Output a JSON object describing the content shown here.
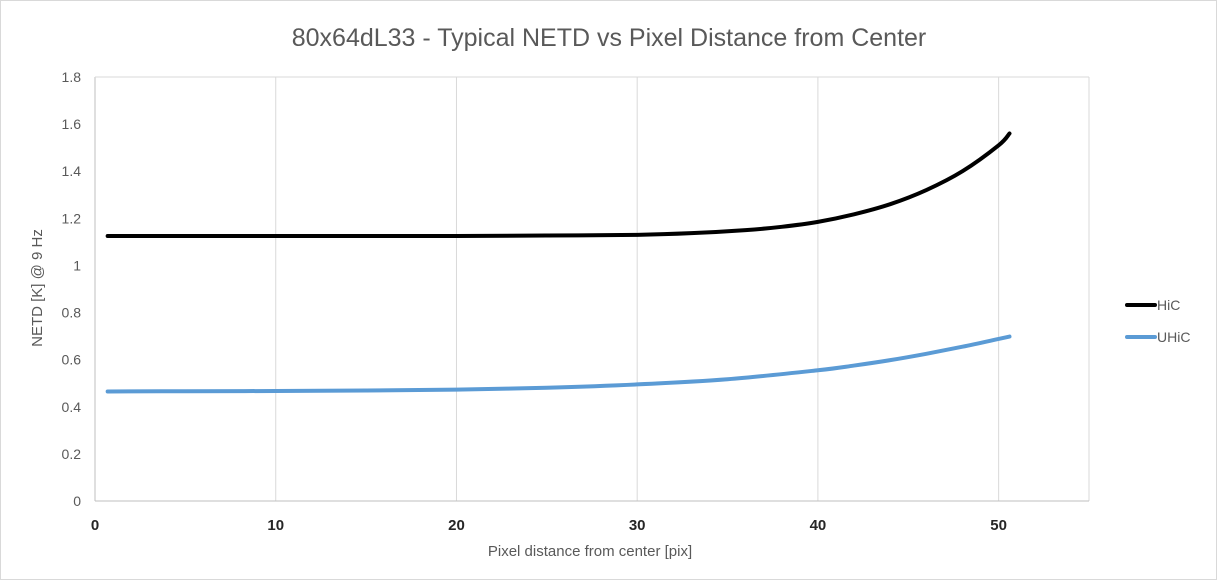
{
  "chart_data": {
    "type": "line",
    "title": "80x64dL33 - Typical NETD vs Pixel Distance from Center",
    "xlabel": "Pixel distance from center [pix]",
    "ylabel": "NETD [K] @ 9 Hz",
    "xlim": [
      0,
      55
    ],
    "ylim": [
      0,
      1.8
    ],
    "xticks": [
      0,
      10,
      20,
      30,
      40,
      50
    ],
    "xtick_labels": [
      "0",
      "10",
      "20",
      "30",
      "40",
      "50"
    ],
    "yticks": [
      0,
      0.2,
      0.4,
      0.6,
      0.8,
      1,
      1.2,
      1.4,
      1.6,
      1.8
    ],
    "ytick_labels": [
      "0",
      "0.2",
      "0.4",
      "0.6",
      "0.8",
      "1",
      "1.2",
      "1.4",
      "1.6",
      "1.8"
    ],
    "grid": "vertical",
    "legend_position": "right",
    "series": [
      {
        "name": "HiC",
        "color": "#000000",
        "x": [
          0.7,
          5,
          10,
          15,
          20,
          25,
          30,
          33,
          36,
          38,
          40,
          42,
          44,
          46,
          48,
          50,
          50.6
        ],
        "y": [
          1.125,
          1.125,
          1.125,
          1.125,
          1.125,
          1.127,
          1.13,
          1.137,
          1.15,
          1.164,
          1.185,
          1.217,
          1.26,
          1.32,
          1.4,
          1.51,
          1.56
        ]
      },
      {
        "name": "UHiC",
        "color": "#5b9bd5",
        "x": [
          0.7,
          5,
          10,
          15,
          20,
          25,
          30,
          35,
          40,
          42,
          44,
          46,
          48,
          50,
          50.6
        ],
        "y": [
          0.465,
          0.466,
          0.467,
          0.469,
          0.473,
          0.481,
          0.495,
          0.517,
          0.555,
          0.575,
          0.598,
          0.625,
          0.655,
          0.688,
          0.698
        ]
      }
    ]
  }
}
